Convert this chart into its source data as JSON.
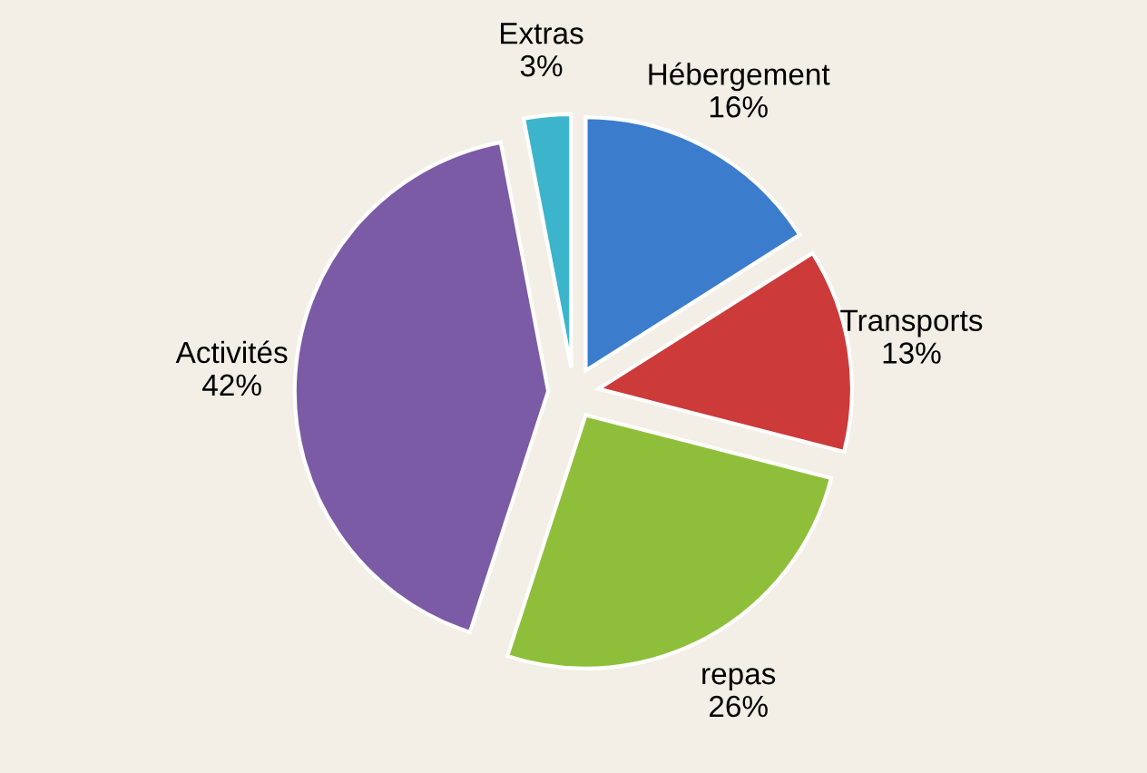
{
  "chart_data": {
    "type": "pie",
    "categories": [
      "Hébergement",
      "Transports",
      "repas",
      "Activités",
      "Extras"
    ],
    "values": [
      16,
      13,
      26,
      42,
      3
    ],
    "value_labels": [
      "16%",
      "13%",
      "26%",
      "42%",
      "3%"
    ],
    "colors": [
      "#3b7ccc",
      "#cc3a3a",
      "#8fbf3a",
      "#7b5aa6",
      "#3cb4cc"
    ],
    "legend": false
  }
}
